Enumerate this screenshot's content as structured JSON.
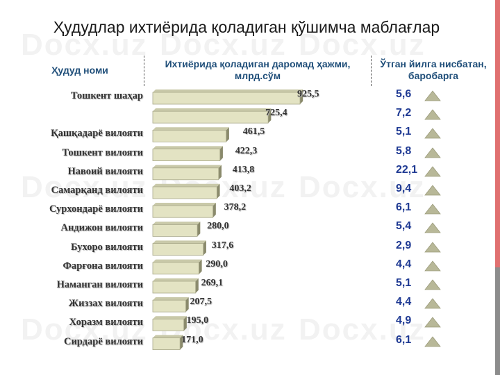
{
  "title": "Ҳудудлар ихтиёрида қоладиган қўшимча маблағлар",
  "watermark": "Docx.uz",
  "headers": {
    "region": "Ҳудуд номи",
    "amount": "Ихтиёрида қоладиган даромад ҳажми, млрд.сўм",
    "growth": "Ўтган йилга нисбатан, баробарга"
  },
  "colors": {
    "bar_face": "#e3e3c3",
    "bar_side": "#8a8a6c",
    "triangle": "#b8b898",
    "accent_red": "#e07070",
    "accent_gray": "#8c8c8c"
  },
  "chart_data": {
    "type": "bar",
    "orientation": "horizontal",
    "categories": [
      "Тошкент шаҳар",
      "",
      "Қашқадарё вилояти",
      "Тошкент вилояти",
      "Навоий вилояти",
      "Самарқанд вилояти",
      "Сурхондарё вилояти",
      "Андижон вилояти",
      "Бухоро вилояти",
      "Фарғона вилояти",
      "Наманган вилояти",
      "Жиззах вилояти",
      "Хоразм вилояти",
      "Сирдарё вилояти"
    ],
    "values": [
      925.5,
      725.4,
      461.5,
      422.3,
      413.8,
      403.2,
      378.2,
      280.0,
      317.6,
      290.0,
      269.1,
      207.5,
      195.0,
      171.0
    ],
    "value_labels": [
      "925,5",
      "725,4",
      "461,5",
      "422,3",
      "413,8",
      "403,2",
      "378,2",
      "280,0",
      "317,6",
      "290,0",
      "269,1",
      "207,5",
      "195,0",
      "171,0"
    ],
    "growth_labels": [
      "5,6",
      "7,2",
      "5,1",
      "5,8",
      "22,1",
      "9,4",
      "6,1",
      "5,4",
      "2,9",
      "4,4",
      "5,1",
      "4,4",
      "4,9",
      "6,1"
    ],
    "growth_values": [
      5.6,
      7.2,
      5.1,
      5.8,
      22.1,
      9.4,
      6.1,
      5.4,
      2.9,
      4.4,
      5.1,
      4.4,
      4.9,
      6.1
    ],
    "growth_marker": "up-triangle",
    "xlim": [
      0,
      925.5
    ],
    "grid": false,
    "legend": "none"
  }
}
